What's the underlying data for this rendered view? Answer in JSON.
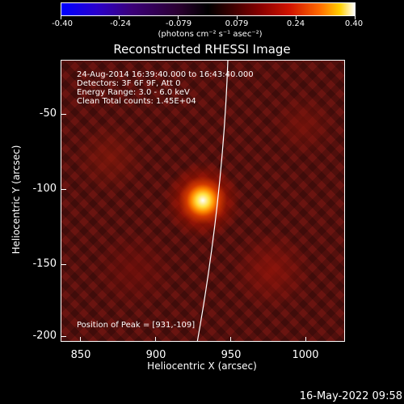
{
  "colorbar": {
    "tick_labels": [
      "-0.40",
      "-0.24",
      "-0.079",
      "0.079",
      "0.24",
      "0.40"
    ],
    "units": "(photons cm⁻² s⁻¹ asec⁻²)",
    "colors": [
      "#0000ff",
      "#3b0078",
      "#000000",
      "#8a0000",
      "#ff6a00",
      "#ffd000",
      "#ffffff"
    ]
  },
  "image": {
    "title": "Reconstructed RHESSI Image",
    "info_lines": [
      "24-Aug-2014 16:39:40.000 to 16:43:40.000",
      "Detectors: 3F 6F 9F, Att 0",
      "Energy Range: 3.0 - 6.0 keV",
      "Clean     Total counts: 1.45E+04"
    ],
    "peak_text": "Position of Peak = [931,-109]",
    "xlabel": "Heliocentric X (arcsec)",
    "ylabel": "Heliocentric Y (arcsec)",
    "x_tick_labels": [
      "850",
      "900",
      "950",
      "1000"
    ],
    "y_tick_labels": [
      "-50",
      "-100",
      "-150",
      "-200"
    ],
    "xlim": [
      835,
      1025
    ],
    "ylim": [
      -205,
      -15
    ],
    "peak_position": [
      931,
      -109
    ]
  },
  "footer": {
    "timestamp": "16-May-2022 09:58"
  }
}
